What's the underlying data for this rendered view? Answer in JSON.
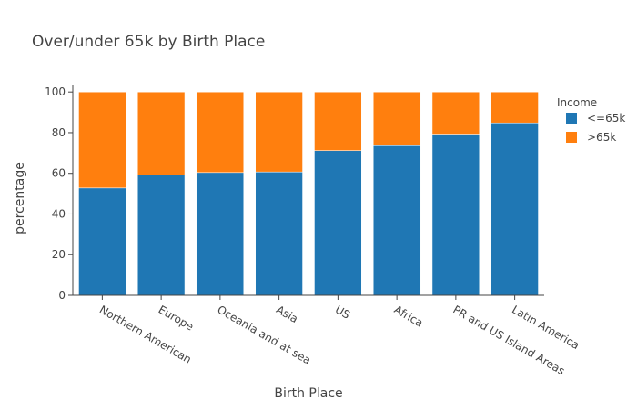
{
  "chart_data": {
    "type": "bar",
    "stacked": true,
    "title": "Over/under 65k by Birth Place",
    "xlabel": "Birth Place",
    "ylabel": "percentage",
    "ylim": [
      0,
      105
    ],
    "yticks": [
      "0",
      "20",
      "40",
      "60",
      "80",
      "100"
    ],
    "categories": [
      "Northern American",
      "Europe",
      "Oceania and at sea",
      "Asia",
      "US",
      "Africa",
      "PR and US Island Areas",
      "Latin America"
    ],
    "legend": {
      "title": "Income",
      "position": "top-right"
    },
    "series": [
      {
        "name": "<=65k",
        "color": "#1f77b4",
        "values": [
          52.8,
          59.3,
          60.4,
          60.7,
          71.2,
          73.6,
          79.3,
          84.8
        ]
      },
      {
        "name": ">65k",
        "color": "#ff7f0e",
        "values": [
          47.2,
          40.7,
          39.6,
          39.3,
          28.8,
          26.4,
          20.7,
          15.2
        ]
      }
    ]
  }
}
